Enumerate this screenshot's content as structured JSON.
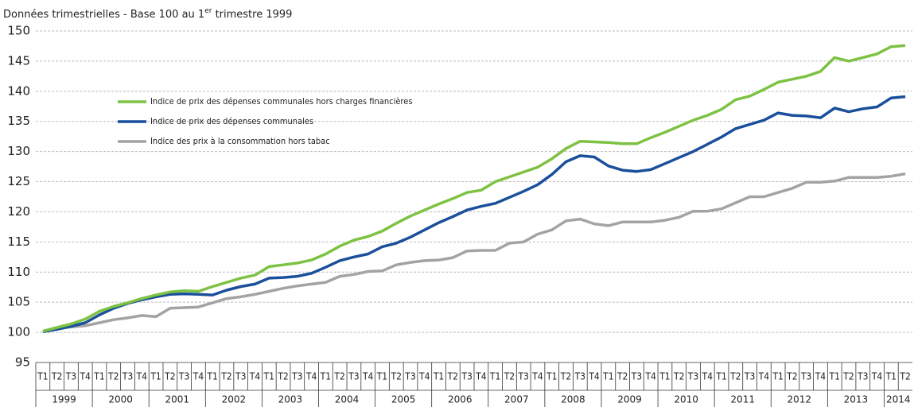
{
  "chart_data": {
    "type": "line",
    "title": [
      "Données trimestrielles - Base 100 au 1",
      "er",
      " trimestre 1999"
    ],
    "categories": [
      "T1",
      "T2",
      "T3",
      "T4",
      "T1",
      "T2",
      "T3",
      "T4",
      "T1",
      "T2",
      "T3",
      "T4",
      "T1",
      "T2",
      "T3",
      "T4",
      "T1",
      "T2",
      "T3",
      "T4",
      "T1",
      "T2",
      "T3",
      "T4",
      "T1",
      "T2",
      "T3",
      "T4",
      "T1",
      "T2",
      "T3",
      "T4",
      "T1",
      "T2",
      "T3",
      "T4",
      "T1",
      "T2",
      "T3",
      "T4",
      "T1",
      "T2",
      "T3",
      "T4",
      "T1",
      "T2",
      "T3",
      "T4",
      "T1",
      "T2",
      "T3",
      "T4",
      "T1",
      "T2",
      "T3",
      "T4",
      "T1",
      "T2",
      "T3",
      "T4",
      "T1",
      "T2"
    ],
    "years": [
      "1999",
      "2000",
      "2001",
      "2002",
      "2003",
      "2004",
      "2005",
      "2006",
      "2007",
      "2008",
      "2009",
      "2010",
      "2011",
      "2012",
      "2013",
      "2014"
    ],
    "series": [
      {
        "name": "Indice de prix des dépenses communales hors charges financières",
        "color": "#7dc242",
        "values": [
          100.2,
          100.8,
          101.4,
          102.2,
          103.5,
          104.3,
          104.9,
          105.6,
          106.2,
          106.7,
          106.9,
          106.8,
          107.6,
          108.3,
          109.0,
          109.5,
          110.9,
          111.2,
          111.5,
          112.0,
          113.0,
          114.3,
          115.3,
          115.9,
          116.8,
          118.1,
          119.3,
          120.3,
          121.3,
          122.2,
          123.2,
          123.6,
          125.0,
          125.8,
          126.6,
          127.4,
          128.8,
          130.5,
          131.7,
          131.6,
          131.5,
          131.3,
          131.3,
          132.3,
          133.2,
          134.2,
          135.2,
          136.0,
          137.0,
          138.6,
          139.2,
          140.3,
          141.5,
          142.0,
          142.5,
          143.3,
          145.6,
          145.0,
          145.6,
          146.2,
          147.4,
          147.6
        ]
      },
      {
        "name": "Indice de prix des dépenses communales",
        "color": "#1a4f9c",
        "values": [
          100.1,
          100.5,
          101.0,
          101.6,
          102.9,
          104.0,
          104.8,
          105.4,
          105.9,
          106.3,
          106.4,
          106.3,
          106.2,
          107.0,
          107.6,
          108.0,
          109.0,
          109.1,
          109.3,
          109.8,
          110.8,
          111.9,
          112.5,
          113.0,
          114.2,
          114.8,
          115.8,
          117.0,
          118.2,
          119.2,
          120.3,
          120.9,
          121.4,
          122.4,
          123.4,
          124.5,
          126.2,
          128.3,
          129.3,
          129.1,
          127.6,
          126.9,
          126.7,
          127.0,
          128.0,
          129.0,
          130.0,
          131.2,
          132.4,
          133.8,
          134.5,
          135.2,
          136.4,
          136.0,
          135.9,
          135.6,
          137.2,
          136.6,
          137.1,
          137.4,
          138.9,
          139.1
        ]
      },
      {
        "name": "Indice des prix à la consommation hors tabac",
        "color": "#a3a3a3",
        "values": [
          100.1,
          100.6,
          100.9,
          101.1,
          101.6,
          102.1,
          102.4,
          102.8,
          102.6,
          104.0,
          104.1,
          104.2,
          104.9,
          105.6,
          105.9,
          106.3,
          106.8,
          107.3,
          107.7,
          108.0,
          108.3,
          109.3,
          109.6,
          110.1,
          110.2,
          111.2,
          111.6,
          111.9,
          112.0,
          112.4,
          113.5,
          113.6,
          113.6,
          114.8,
          115.0,
          116.3,
          117.0,
          118.5,
          118.8,
          118.0,
          117.7,
          118.3,
          118.3,
          118.3,
          118.6,
          119.1,
          120.1,
          120.1,
          120.5,
          121.5,
          122.5,
          122.5,
          123.2,
          123.9,
          124.9,
          124.9,
          125.1,
          125.7,
          125.7,
          125.7,
          125.9,
          126.3
        ]
      }
    ],
    "ylim": [
      95,
      150
    ],
    "yticks": [
      95,
      100,
      105,
      110,
      115,
      120,
      125,
      130,
      135,
      140,
      145,
      150
    ],
    "grid": true
  }
}
